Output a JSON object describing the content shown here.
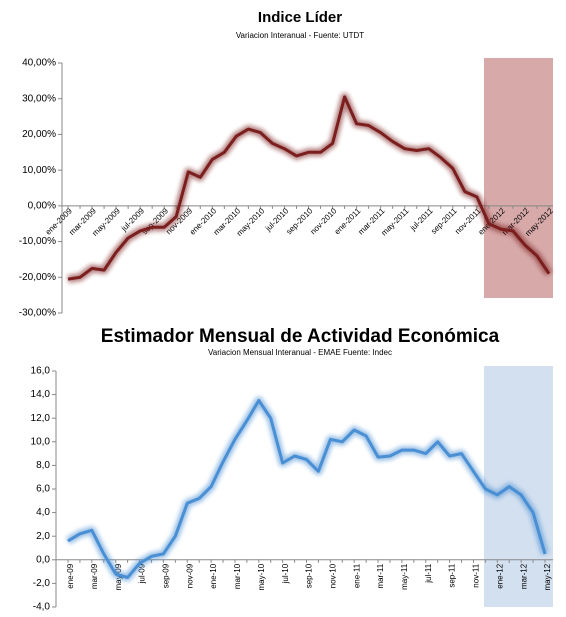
{
  "chart_data": [
    {
      "type": "line",
      "title": "Indice Líder",
      "subtitle": "Variacion Interanual - Fuente: UTDT",
      "categories": [
        "ene-2009",
        null,
        "mar-2009",
        null,
        "may-2009",
        null,
        "jul-2009",
        null,
        "sep-2009",
        null,
        "nov-2009",
        null,
        "ene-2010",
        null,
        "mar-2010",
        null,
        "may-2010",
        null,
        "jul-2010",
        null,
        "sep-2010",
        null,
        "nov-2010",
        null,
        "ene-2011",
        null,
        "mar-2011",
        null,
        "may-2011",
        null,
        "jul-2011",
        null,
        "sep-2011",
        null,
        "nov-2011",
        null,
        "ene-2012",
        null,
        "mar-2012",
        null,
        "may-2012"
      ],
      "series": [
        {
          "name": "Indice Líder",
          "color": "#7a1e1e",
          "values": [
            -20.5,
            -20,
            -17.5,
            -18,
            -13,
            -9,
            -7,
            -6,
            -6,
            -3,
            9.5,
            8,
            13,
            15,
            19.5,
            21.5,
            20.5,
            17.5,
            16,
            14,
            15,
            15,
            17.5,
            30.5,
            23,
            22.5,
            20.5,
            18,
            16,
            15.5,
            16,
            13.5,
            10.5,
            4,
            2.5,
            -5,
            -6.5,
            -7,
            -11,
            -14,
            -19
          ]
        }
      ],
      "ylim": [
        -30,
        40
      ],
      "yticks": [
        {
          "value": -30,
          "label": "-30,00%"
        },
        {
          "value": -20,
          "label": "-20,00%"
        },
        {
          "value": -10,
          "label": "-10,00%"
        },
        {
          "value": 0,
          "label": "0,00%"
        },
        {
          "value": 10,
          "label": "10,00%"
        },
        {
          "value": 20,
          "label": "20,00%"
        },
        {
          "value": 30,
          "label": "30,00%"
        },
        {
          "value": 40,
          "label": "40,00%"
        }
      ],
      "grid": false
    },
    {
      "type": "line",
      "title": "Estimador Mensual de Actividad Económica",
      "subtitle": "Variacion Mensual Interanual - EMAE Fuente: Indec",
      "categories": [
        "ene-09",
        null,
        "mar-09",
        null,
        "may-09",
        null,
        "jul-09",
        null,
        "sep-09",
        null,
        "nov-09",
        null,
        "ene-10",
        null,
        "mar-10",
        null,
        "may-10",
        null,
        "jul-10",
        null,
        "sep-10",
        null,
        "nov-10",
        null,
        "ene-11",
        null,
        "mar-11",
        null,
        "may-11",
        null,
        "jul-11",
        null,
        "sep-11",
        null,
        "nov-11",
        null,
        "ene-12",
        null,
        "mar-12",
        null,
        "may-12"
      ],
      "series": [
        {
          "name": "EMAE",
          "color": "#4a8fd4",
          "values": [
            1.6,
            2.2,
            2.5,
            0.5,
            -1.2,
            -1.5,
            -0.3,
            0.3,
            0.5,
            2,
            4.8,
            5.2,
            6.2,
            8.3,
            10.2,
            11.8,
            13.5,
            12,
            8.2,
            8.8,
            8.5,
            7.5,
            10.2,
            10,
            11,
            10.5,
            8.7,
            8.8,
            9.3,
            9.3,
            9,
            10,
            8.8,
            9,
            7.5,
            6,
            5.5,
            6.2,
            5.5,
            4,
            0.5
          ]
        }
      ],
      "ylim": [
        -4,
        16
      ],
      "yticks": [
        {
          "value": -4,
          "label": "-4,0"
        },
        {
          "value": -2,
          "label": "-2,0"
        },
        {
          "value": 0,
          "label": "0,0"
        },
        {
          "value": 2,
          "label": "2,0"
        },
        {
          "value": 4,
          "label": "4,0"
        },
        {
          "value": 6,
          "label": "6,0"
        },
        {
          "value": 8,
          "label": "8,0"
        },
        {
          "value": 10,
          "label": "10,0"
        },
        {
          "value": 12,
          "label": "12,0"
        },
        {
          "value": 14,
          "label": "14,0"
        },
        {
          "value": 16,
          "label": "16,0"
        }
      ],
      "grid": false
    }
  ]
}
